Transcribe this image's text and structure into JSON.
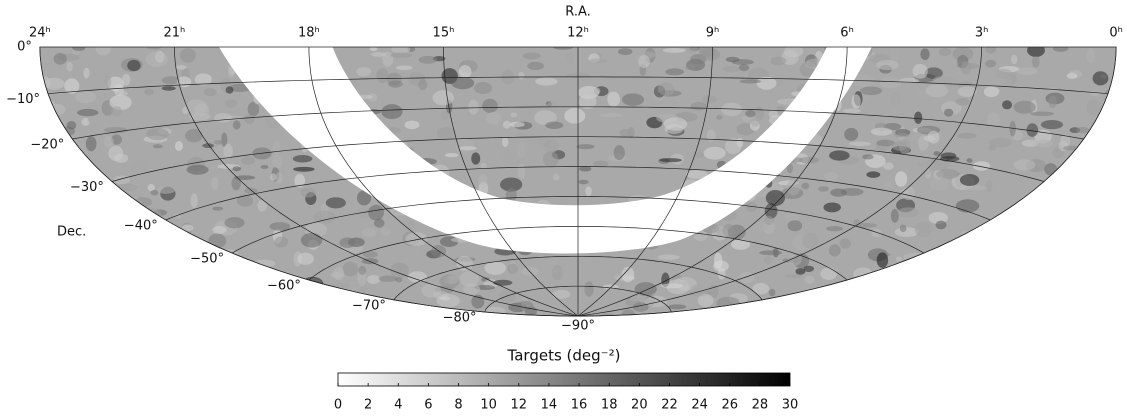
{
  "axis_title_top": "R.A.",
  "axis_title_left": "Dec.",
  "ra_labels": [
    "24ʰ",
    "21ʰ",
    "18ʰ",
    "15ʰ",
    "12ʰ",
    "9ʰ",
    "6ʰ",
    "3ʰ",
    "0ʰ"
  ],
  "dec_labels": [
    "0°",
    "−10°",
    "−20°",
    "−30°",
    "−40°",
    "−50°",
    "−60°",
    "−70°",
    "−80°",
    "−90°"
  ],
  "colorbar": {
    "title": "Targets (deg⁻²)",
    "range": [
      0,
      30
    ],
    "ticks": [
      0,
      2,
      4,
      6,
      8,
      10,
      12,
      14,
      16,
      18,
      20,
      22,
      24,
      26,
      28,
      30
    ]
  }
}
